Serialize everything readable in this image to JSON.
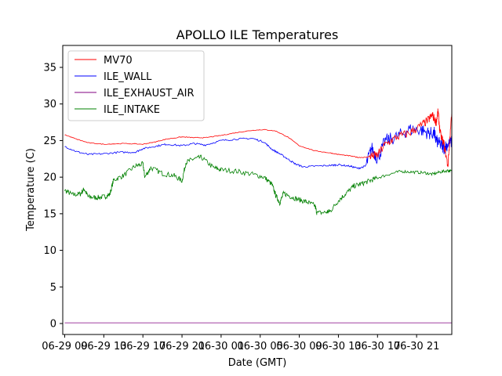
{
  "chart_data": {
    "type": "line",
    "title": "APOLLO ILE Temperatures",
    "xlabel": "Date (GMT)",
    "ylabel": "Temperature (C)",
    "ylim": [
      -1.5,
      38
    ],
    "xlim": [
      -0.05,
      9.9
    ],
    "yticks": [
      0,
      5,
      10,
      15,
      20,
      25,
      30,
      35
    ],
    "x_tick_positions": [
      0,
      1,
      2,
      3,
      4,
      5,
      6,
      7,
      8,
      9
    ],
    "x_tick_labels": [
      "06-29 09",
      "06-29 13",
      "06-29 17",
      "06-29 21",
      "06-30 01",
      "06-30 05",
      "06-30 09",
      "06-30 13",
      "06-30 17",
      "06-30 21"
    ],
    "legend_position": "top-left",
    "series": [
      {
        "name": "MV70",
        "color": "#ff0000",
        "x": [
          0,
          0.3,
          0.6,
          1.0,
          1.5,
          2.0,
          2.3,
          2.6,
          3.0,
          3.3,
          3.6,
          4.0,
          4.4,
          4.8,
          5.1,
          5.4,
          5.7,
          6.0,
          6.4,
          6.8,
          7.0,
          7.3,
          7.5,
          7.7,
          7.85,
          8.0,
          8.2,
          8.5,
          8.8,
          9.1,
          9.3,
          9.4,
          9.5,
          9.55,
          9.6,
          9.7,
          9.8,
          9.9
        ],
        "values": [
          25.8,
          25.2,
          24.7,
          24.5,
          24.6,
          24.5,
          24.8,
          25.2,
          25.5,
          25.4,
          25.4,
          25.7,
          26.1,
          26.4,
          26.5,
          26.3,
          25.5,
          24.3,
          23.6,
          23.3,
          23.1,
          22.9,
          22.7,
          22.7,
          22.9,
          23.0,
          24.5,
          25.5,
          26.0,
          27.0,
          27.8,
          28.5,
          27.5,
          29.0,
          26.0,
          24.5,
          21.5,
          29.0
        ]
      },
      {
        "name": "ILE_WALL",
        "color": "#0000ff",
        "x": [
          0,
          0.3,
          0.6,
          1.0,
          1.4,
          1.8,
          2.0,
          2.3,
          2.6,
          3.0,
          3.3,
          3.6,
          4.0,
          4.4,
          4.8,
          5.1,
          5.3,
          5.5,
          5.7,
          5.9,
          6.1,
          6.4,
          6.8,
          7.0,
          7.3,
          7.5,
          7.7,
          7.85,
          8.0,
          8.2,
          8.5,
          8.8,
          9.1,
          9.3,
          9.45,
          9.5,
          9.6,
          9.7,
          9.8,
          9.9
        ],
        "values": [
          24.2,
          23.5,
          23.1,
          23.2,
          23.4,
          23.4,
          23.9,
          24.2,
          24.5,
          24.3,
          24.6,
          24.4,
          25.0,
          25.2,
          25.3,
          24.8,
          23.8,
          23.2,
          22.5,
          21.8,
          21.4,
          21.5,
          21.6,
          21.7,
          21.5,
          21.2,
          21.5,
          24.0,
          22.5,
          25.0,
          25.5,
          26.5,
          26.5,
          26.0,
          26.0,
          25.0,
          24.5,
          24.0,
          24.5,
          24.8
        ]
      },
      {
        "name": "ILE_EXHAUST_AIR",
        "color": "#800080",
        "x": [
          0,
          9.9
        ],
        "values": [
          0.1,
          0.1
        ]
      },
      {
        "name": "ILE_INTAKE",
        "color": "#008000",
        "x": [
          0,
          0.2,
          0.4,
          0.5,
          0.6,
          0.8,
          1.0,
          1.15,
          1.25,
          1.5,
          1.8,
          2.0,
          2.05,
          2.2,
          2.5,
          2.8,
          3.0,
          3.1,
          3.3,
          3.5,
          3.8,
          4.0,
          4.4,
          4.8,
          5.1,
          5.3,
          5.4,
          5.5,
          5.6,
          5.8,
          6.0,
          6.2,
          6.4,
          6.45,
          6.7,
          6.8,
          7.0,
          7.2,
          7.4,
          7.6,
          7.8,
          8.0,
          8.3,
          8.6,
          8.9,
          9.2,
          9.4,
          9.6,
          9.8,
          9.9
        ],
        "values": [
          18.2,
          17.6,
          17.7,
          18.4,
          17.3,
          17.2,
          17.3,
          17.6,
          19.6,
          20.2,
          21.5,
          21.8,
          20.0,
          21.3,
          20.5,
          20.2,
          19.5,
          22.0,
          22.5,
          22.7,
          21.3,
          21.0,
          20.8,
          20.4,
          20.0,
          19.0,
          17.5,
          16.5,
          17.8,
          17.3,
          16.9,
          16.6,
          16.1,
          15.1,
          15.2,
          15.4,
          16.8,
          17.8,
          18.8,
          19.1,
          19.5,
          19.9,
          20.4,
          20.8,
          20.7,
          20.6,
          20.4,
          20.7,
          20.9,
          20.8
        ]
      }
    ]
  }
}
